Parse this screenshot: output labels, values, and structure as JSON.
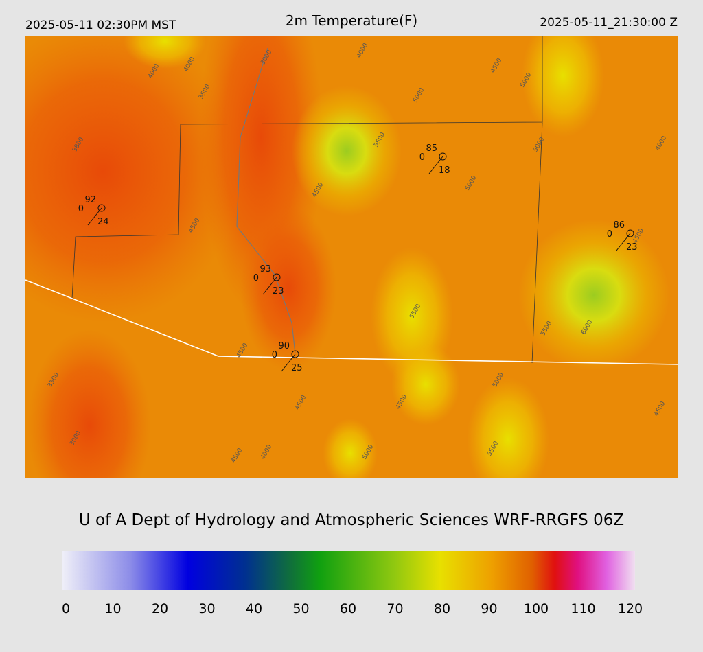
{
  "header": {
    "left": "2025-05-11 02:30PM MST",
    "title": "2m Temperature(F)",
    "right": "2025-05-11_21:30:00 Z"
  },
  "stations": [
    {
      "temp": 92,
      "dew": 0,
      "wind": 24
    },
    {
      "temp": 85,
      "dew": 0,
      "wind": 18
    },
    {
      "temp": 93,
      "dew": 0,
      "wind": 23
    },
    {
      "temp": 90,
      "dew": 0,
      "wind": 25
    },
    {
      "temp": 86,
      "dew": 0,
      "wind": 23
    }
  ],
  "contour_labels": [
    4000,
    4000,
    4000,
    3500,
    3000,
    3800,
    4500,
    5500,
    5000,
    4500,
    5000,
    5000,
    5000,
    4000,
    4500,
    4500,
    5500,
    5500,
    6000,
    4500,
    3500,
    4500,
    4500,
    5000,
    4500,
    3000,
    4000,
    4500,
    5000,
    5500
  ],
  "footer": "U of A Dept of Hydrology and Atmospheric Sciences WRF-RRGFS 06Z",
  "colorbar": {
    "range": [
      0,
      120
    ],
    "ticks": [
      0,
      10,
      20,
      30,
      40,
      50,
      60,
      70,
      80,
      90,
      100,
      110,
      120
    ]
  }
}
